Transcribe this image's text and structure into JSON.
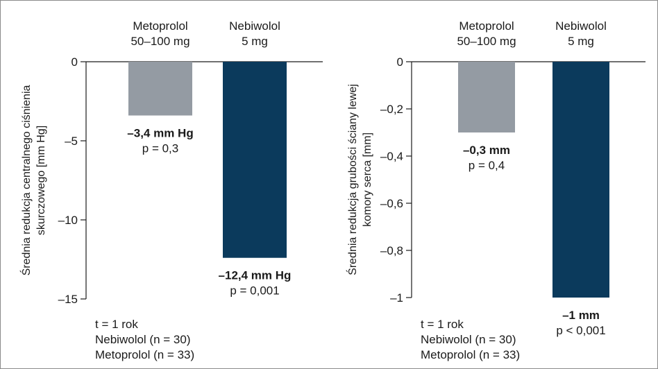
{
  "chart_data": [
    {
      "type": "bar",
      "categories": [
        "Metoprolol 50–100 mg",
        "Nebiwolol 5 mg"
      ],
      "category_lines": [
        [
          "Metoprolol",
          "50–100 mg"
        ],
        [
          "Nebiwolol",
          "5 mg"
        ]
      ],
      "values": [
        -3.4,
        -12.4
      ],
      "bar_colors": [
        "#949ba3",
        "#0b3a5c"
      ],
      "value_labels": [
        "–3,4 mm Hg",
        "–12,4 mm Hg"
      ],
      "p_labels": [
        "p = 0,3",
        "p = 0,001"
      ],
      "ylabel_lines": [
        "Średnia redukcja centralnego ciśnienia",
        "skurczowego [mm Hg]"
      ],
      "yticks": [
        0,
        -5,
        -10,
        -15
      ],
      "ytick_labels": [
        "0",
        "–5",
        "–10",
        "–15"
      ],
      "ylim": [
        -15,
        0
      ],
      "notes": [
        "t = 1 rok",
        "Nebiwolol (n = 30)",
        "Metoprolol (n = 33)"
      ]
    },
    {
      "type": "bar",
      "categories": [
        "Metoprolol 50–100 mg",
        "Nebiwolol 5 mg"
      ],
      "category_lines": [
        [
          "Metoprolol",
          "50–100 mg"
        ],
        [
          "Nebiwolol",
          "5 mg"
        ]
      ],
      "values": [
        -0.3,
        -1.0
      ],
      "bar_colors": [
        "#949ba3",
        "#0b3a5c"
      ],
      "value_labels": [
        "–0,3 mm",
        "–1 mm"
      ],
      "p_labels": [
        "p = 0,4",
        "p < 0,001"
      ],
      "ylabel_lines": [
        "Średnia redukcja grubości ściany lewej",
        "komory serca [mm]"
      ],
      "yticks": [
        0,
        -0.2,
        -0.4,
        -0.6,
        -0.8,
        -1
      ],
      "ytick_labels": [
        "0",
        "–0,2",
        "–0,4",
        "–0,6",
        "–0,8",
        "–1"
      ],
      "ylim": [
        -1,
        0
      ],
      "notes": [
        "t = 1 rok",
        "Nebiwolol (n = 30)",
        "Metoprolol (n = 33)"
      ]
    }
  ]
}
